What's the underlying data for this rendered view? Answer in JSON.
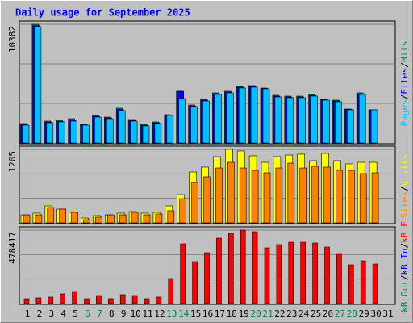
{
  "title": "Daily usage for September 2025",
  "legend_separator": "/",
  "categories": [
    "1",
    "2",
    "3",
    "4",
    "5",
    "6",
    "7",
    "8",
    "9",
    "10",
    "11",
    "12",
    "13",
    "14",
    "15",
    "16",
    "17",
    "18",
    "19",
    "20",
    "21",
    "22",
    "23",
    "24",
    "25",
    "26",
    "27",
    "28",
    "29",
    "30",
    "31"
  ],
  "category_colors": [
    "#000000",
    "#000000",
    "#000000",
    "#000000",
    "#000000",
    "#00805c",
    "#00805c",
    "#000000",
    "#000000",
    "#000000",
    "#000000",
    "#000000",
    "#00805c",
    "#00805c",
    "#000000",
    "#000000",
    "#000000",
    "#000000",
    "#000000",
    "#00805c",
    "#00805c",
    "#000000",
    "#000000",
    "#000000",
    "#000000",
    "#000000",
    "#00805c",
    "#00805c",
    "#000000",
    "#000000",
    "#000000"
  ],
  "chart_data": [
    {
      "type": "bar",
      "ylim": [
        0,
        10382
      ],
      "yticks": [
        10382
      ],
      "series": [
        {
          "name": "Hits",
          "color": "#00805c",
          "values": [
            1695,
            10382,
            1907,
            1978,
            2119,
            1624,
            2401,
            2260,
            3037,
            2048,
            1624,
            1836,
            2472,
            4520,
            3320,
            3814,
            4379,
            4520,
            4944,
            5014,
            4803,
            4167,
            4096,
            4096,
            4238,
            3814,
            3743,
            2966,
            4379,
            2896,
            null
          ]
        },
        {
          "name": "Files",
          "color": "#0000ff",
          "values": [
            1600,
            10250,
            1820,
            1890,
            2000,
            1580,
            2320,
            2180,
            2920,
            1960,
            1540,
            1750,
            2430,
            4520,
            3240,
            3740,
            4300,
            4440,
            4870,
            4940,
            4760,
            4090,
            4020,
            4020,
            4160,
            3770,
            3670,
            2930,
            4300,
            2896,
            null
          ]
        },
        {
          "name": "Pages",
          "color": "#00c0ff",
          "values": [
            1554,
            10170,
            1766,
            1836,
            1907,
            1554,
            2260,
            2119,
            2825,
            1907,
            1483,
            1695,
            2401,
            3884,
            3178,
            3672,
            4238,
            4379,
            4803,
            4873,
            4732,
            4026,
            3955,
            3955,
            4096,
            3743,
            3602,
            2896,
            4238,
            2896,
            null
          ]
        }
      ]
    },
    {
      "type": "bar",
      "ylim": [
        0,
        1205
      ],
      "yticks": [
        1205
      ],
      "series": [
        {
          "name": "Visits",
          "color": "#ffff00",
          "values": [
            132,
            159,
            278,
            225,
            172,
            79,
            119,
            132,
            159,
            185,
            159,
            172,
            278,
            463,
            834,
            914,
            1086,
            1205,
            1179,
            1099,
            993,
            1086,
            1112,
            1126,
            1020,
            1139,
            1020,
            967,
            993,
            993,
            null
          ]
        },
        {
          "name": "Sites",
          "color": "#ff8000",
          "values": [
            132,
            132,
            252,
            225,
            172,
            53,
            93,
            132,
            132,
            172,
            132,
            146,
            199,
            397,
            662,
            755,
            900,
            993,
            900,
            861,
            821,
            900,
            980,
            900,
            927,
            914,
            861,
            861,
            808,
            821,
            null
          ]
        }
      ]
    },
    {
      "type": "bar",
      "ylim": [
        0,
        478417
      ],
      "yticks": [
        478417
      ],
      "series": [
        {
          "name": "kB F",
          "color": "#ff0000",
          "values": [
            31544,
            36801,
            42059,
            63088,
            78860,
            31544,
            52573,
            31544,
            57831,
            52573,
            31544,
            42059,
            162978,
            389048,
            273381,
            331211,
            425849,
            457393,
            478417,
            467902,
            362756,
            383785,
            399557,
            399557,
            394300,
            368014,
            325953,
            252351,
            278637,
            257609,
            null
          ]
        },
        {
          "name": "kB In",
          "color": "#0000ff",
          "values": [
            0,
            0,
            0,
            0,
            0,
            0,
            0,
            0,
            0,
            0,
            0,
            0,
            0,
            0,
            0,
            0,
            0,
            0,
            0,
            0,
            0,
            0,
            0,
            0,
            0,
            0,
            0,
            0,
            0,
            0,
            null
          ]
        },
        {
          "name": "kB Out",
          "color": "#00805c",
          "values": [
            0,
            0,
            0,
            0,
            0,
            0,
            0,
            0,
            0,
            0,
            0,
            0,
            0,
            0,
            0,
            0,
            0,
            0,
            0,
            0,
            0,
            0,
            0,
            0,
            0,
            0,
            0,
            0,
            0,
            0,
            null
          ]
        }
      ]
    }
  ]
}
